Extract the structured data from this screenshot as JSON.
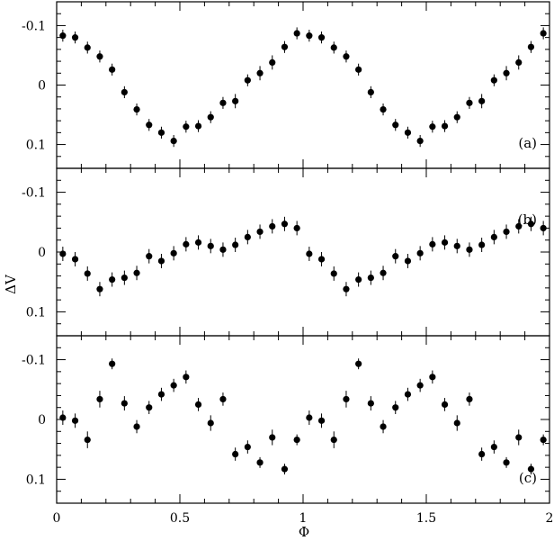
{
  "chart_data": {
    "type": "scatter",
    "x_axis": {
      "label": "Φ",
      "range": [
        0,
        2
      ],
      "ticks": [
        0,
        0.5,
        1,
        1.5,
        2
      ],
      "tick_labels": [
        "0",
        "0.5",
        "1",
        "1.5",
        "2"
      ]
    },
    "y_axis": {
      "label": "ΔV",
      "range": [
        -0.14,
        0.14
      ],
      "inverted": true,
      "ticks": [
        -0.1,
        0,
        0.1
      ],
      "tick_labels": [
        "-0.1",
        "0",
        "0.1"
      ]
    },
    "grid": false,
    "error_bars": true,
    "panels": [
      {
        "tag": "(a)",
        "tag_position": "bottom-right",
        "points": [
          {
            "x": 0.025,
            "y": -0.083,
            "err": 0.01
          },
          {
            "x": 0.075,
            "y": -0.08,
            "err": 0.01
          },
          {
            "x": 0.125,
            "y": -0.063,
            "err": 0.01
          },
          {
            "x": 0.175,
            "y": -0.048,
            "err": 0.01
          },
          {
            "x": 0.225,
            "y": -0.026,
            "err": 0.01
          },
          {
            "x": 0.275,
            "y": 0.012,
            "err": 0.01
          },
          {
            "x": 0.325,
            "y": 0.041,
            "err": 0.01
          },
          {
            "x": 0.375,
            "y": 0.067,
            "err": 0.01
          },
          {
            "x": 0.425,
            "y": 0.08,
            "err": 0.01
          },
          {
            "x": 0.475,
            "y": 0.094,
            "err": 0.01
          },
          {
            "x": 0.525,
            "y": 0.07,
            "err": 0.01
          },
          {
            "x": 0.575,
            "y": 0.069,
            "err": 0.01
          },
          {
            "x": 0.625,
            "y": 0.054,
            "err": 0.01
          },
          {
            "x": 0.675,
            "y": 0.03,
            "err": 0.01
          },
          {
            "x": 0.725,
            "y": 0.027,
            "err": 0.012
          },
          {
            "x": 0.775,
            "y": -0.008,
            "err": 0.01
          },
          {
            "x": 0.825,
            "y": -0.02,
            "err": 0.012
          },
          {
            "x": 0.875,
            "y": -0.038,
            "err": 0.012
          },
          {
            "x": 0.925,
            "y": -0.064,
            "err": 0.01
          },
          {
            "x": 0.975,
            "y": -0.087,
            "err": 0.01
          },
          {
            "x": 1.025,
            "y": -0.083,
            "err": 0.01
          },
          {
            "x": 1.075,
            "y": -0.08,
            "err": 0.01
          },
          {
            "x": 1.125,
            "y": -0.063,
            "err": 0.01
          },
          {
            "x": 1.175,
            "y": -0.048,
            "err": 0.01
          },
          {
            "x": 1.225,
            "y": -0.026,
            "err": 0.01
          },
          {
            "x": 1.275,
            "y": 0.012,
            "err": 0.01
          },
          {
            "x": 1.325,
            "y": 0.041,
            "err": 0.01
          },
          {
            "x": 1.375,
            "y": 0.067,
            "err": 0.01
          },
          {
            "x": 1.425,
            "y": 0.08,
            "err": 0.01
          },
          {
            "x": 1.475,
            "y": 0.094,
            "err": 0.01
          },
          {
            "x": 1.525,
            "y": 0.07,
            "err": 0.01
          },
          {
            "x": 1.575,
            "y": 0.069,
            "err": 0.01
          },
          {
            "x": 1.625,
            "y": 0.054,
            "err": 0.01
          },
          {
            "x": 1.675,
            "y": 0.03,
            "err": 0.01
          },
          {
            "x": 1.725,
            "y": 0.027,
            "err": 0.012
          },
          {
            "x": 1.775,
            "y": -0.008,
            "err": 0.01
          },
          {
            "x": 1.825,
            "y": -0.02,
            "err": 0.012
          },
          {
            "x": 1.875,
            "y": -0.038,
            "err": 0.012
          },
          {
            "x": 1.925,
            "y": -0.064,
            "err": 0.01
          },
          {
            "x": 1.975,
            "y": -0.087,
            "err": 0.01
          }
        ]
      },
      {
        "tag": "(b)",
        "tag_position": "top-right",
        "points": [
          {
            "x": 0.025,
            "y": 0.003,
            "err": 0.012
          },
          {
            "x": 0.075,
            "y": 0.012,
            "err": 0.012
          },
          {
            "x": 0.125,
            "y": 0.036,
            "err": 0.012
          },
          {
            "x": 0.175,
            "y": 0.062,
            "err": 0.012
          },
          {
            "x": 0.225,
            "y": 0.046,
            "err": 0.012
          },
          {
            "x": 0.275,
            "y": 0.043,
            "err": 0.012
          },
          {
            "x": 0.325,
            "y": 0.035,
            "err": 0.012
          },
          {
            "x": 0.375,
            "y": 0.007,
            "err": 0.012
          },
          {
            "x": 0.425,
            "y": 0.015,
            "err": 0.012
          },
          {
            "x": 0.475,
            "y": 0.002,
            "err": 0.012
          },
          {
            "x": 0.525,
            "y": -0.013,
            "err": 0.012
          },
          {
            "x": 0.575,
            "y": -0.016,
            "err": 0.012
          },
          {
            "x": 0.625,
            "y": -0.01,
            "err": 0.012
          },
          {
            "x": 0.675,
            "y": -0.004,
            "err": 0.012
          },
          {
            "x": 0.725,
            "y": -0.012,
            "err": 0.012
          },
          {
            "x": 0.775,
            "y": -0.025,
            "err": 0.012
          },
          {
            "x": 0.825,
            "y": -0.034,
            "err": 0.012
          },
          {
            "x": 0.875,
            "y": -0.043,
            "err": 0.012
          },
          {
            "x": 0.925,
            "y": -0.047,
            "err": 0.012
          },
          {
            "x": 0.975,
            "y": -0.04,
            "err": 0.012
          },
          {
            "x": 1.025,
            "y": 0.003,
            "err": 0.012
          },
          {
            "x": 1.075,
            "y": 0.012,
            "err": 0.012
          },
          {
            "x": 1.125,
            "y": 0.036,
            "err": 0.012
          },
          {
            "x": 1.175,
            "y": 0.062,
            "err": 0.012
          },
          {
            "x": 1.225,
            "y": 0.046,
            "err": 0.012
          },
          {
            "x": 1.275,
            "y": 0.043,
            "err": 0.012
          },
          {
            "x": 1.325,
            "y": 0.035,
            "err": 0.012
          },
          {
            "x": 1.375,
            "y": 0.007,
            "err": 0.012
          },
          {
            "x": 1.425,
            "y": 0.015,
            "err": 0.012
          },
          {
            "x": 1.475,
            "y": 0.002,
            "err": 0.012
          },
          {
            "x": 1.525,
            "y": -0.013,
            "err": 0.012
          },
          {
            "x": 1.575,
            "y": -0.016,
            "err": 0.012
          },
          {
            "x": 1.625,
            "y": -0.01,
            "err": 0.012
          },
          {
            "x": 1.675,
            "y": -0.004,
            "err": 0.012
          },
          {
            "x": 1.725,
            "y": -0.012,
            "err": 0.012
          },
          {
            "x": 1.775,
            "y": -0.025,
            "err": 0.012
          },
          {
            "x": 1.825,
            "y": -0.034,
            "err": 0.012
          },
          {
            "x": 1.875,
            "y": -0.043,
            "err": 0.012
          },
          {
            "x": 1.925,
            "y": -0.047,
            "err": 0.012
          },
          {
            "x": 1.975,
            "y": -0.04,
            "err": 0.012
          }
        ]
      },
      {
        "tag": "(c)",
        "tag_position": "bottom-right",
        "points": [
          {
            "x": 0.025,
            "y": -0.003,
            "err": 0.012
          },
          {
            "x": 0.075,
            "y": 0.002,
            "err": 0.012
          },
          {
            "x": 0.125,
            "y": 0.034,
            "err": 0.014
          },
          {
            "x": 0.175,
            "y": -0.034,
            "err": 0.014
          },
          {
            "x": 0.225,
            "y": -0.093,
            "err": 0.009
          },
          {
            "x": 0.275,
            "y": -0.027,
            "err": 0.012
          },
          {
            "x": 0.325,
            "y": 0.012,
            "err": 0.011
          },
          {
            "x": 0.375,
            "y": -0.02,
            "err": 0.011
          },
          {
            "x": 0.425,
            "y": -0.042,
            "err": 0.011
          },
          {
            "x": 0.475,
            "y": -0.057,
            "err": 0.011
          },
          {
            "x": 0.525,
            "y": -0.071,
            "err": 0.011
          },
          {
            "x": 0.575,
            "y": -0.025,
            "err": 0.011
          },
          {
            "x": 0.625,
            "y": 0.006,
            "err": 0.013
          },
          {
            "x": 0.675,
            "y": -0.034,
            "err": 0.011
          },
          {
            "x": 0.725,
            "y": 0.058,
            "err": 0.011
          },
          {
            "x": 0.775,
            "y": 0.046,
            "err": 0.011
          },
          {
            "x": 0.825,
            "y": 0.072,
            "err": 0.009
          },
          {
            "x": 0.875,
            "y": 0.03,
            "err": 0.013
          },
          {
            "x": 0.925,
            "y": 0.083,
            "err": 0.009
          },
          {
            "x": 0.975,
            "y": 0.034,
            "err": 0.009
          },
          {
            "x": 1.025,
            "y": -0.003,
            "err": 0.012
          },
          {
            "x": 1.075,
            "y": 0.002,
            "err": 0.012
          },
          {
            "x": 1.125,
            "y": 0.034,
            "err": 0.014
          },
          {
            "x": 1.175,
            "y": -0.034,
            "err": 0.014
          },
          {
            "x": 1.225,
            "y": -0.093,
            "err": 0.009
          },
          {
            "x": 1.275,
            "y": -0.027,
            "err": 0.012
          },
          {
            "x": 1.325,
            "y": 0.012,
            "err": 0.011
          },
          {
            "x": 1.375,
            "y": -0.02,
            "err": 0.011
          },
          {
            "x": 1.425,
            "y": -0.042,
            "err": 0.011
          },
          {
            "x": 1.475,
            "y": -0.057,
            "err": 0.011
          },
          {
            "x": 1.525,
            "y": -0.071,
            "err": 0.011
          },
          {
            "x": 1.575,
            "y": -0.025,
            "err": 0.011
          },
          {
            "x": 1.625,
            "y": 0.006,
            "err": 0.013
          },
          {
            "x": 1.675,
            "y": -0.034,
            "err": 0.011
          },
          {
            "x": 1.725,
            "y": 0.058,
            "err": 0.011
          },
          {
            "x": 1.775,
            "y": 0.046,
            "err": 0.011
          },
          {
            "x": 1.825,
            "y": 0.072,
            "err": 0.009
          },
          {
            "x": 1.875,
            "y": 0.03,
            "err": 0.013
          },
          {
            "x": 1.925,
            "y": 0.083,
            "err": 0.009
          },
          {
            "x": 1.975,
            "y": 0.034,
            "err": 0.009
          }
        ]
      }
    ]
  }
}
